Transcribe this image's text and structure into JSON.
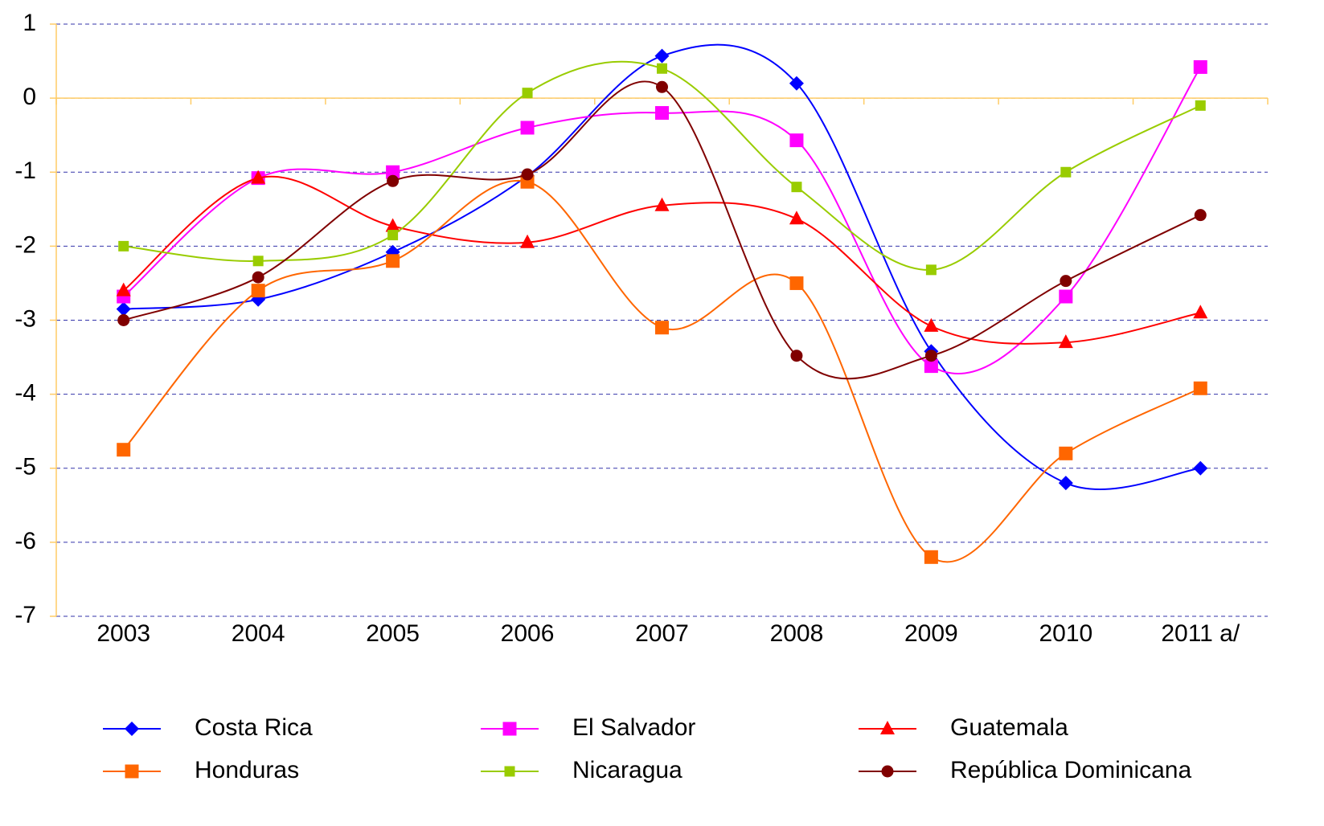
{
  "chart_data": {
    "type": "line",
    "categories": [
      "2003",
      "2004",
      "2005",
      "2006",
      "2007",
      "2008",
      "2009",
      "2010",
      "2011 a/"
    ],
    "series": [
      {
        "name": "Costa Rica",
        "color": "#0000ff",
        "marker": "diamond",
        "values": [
          -2.85,
          -2.72,
          -2.08,
          -1.05,
          0.57,
          0.2,
          -3.42,
          -5.2,
          -5.0
        ]
      },
      {
        "name": "El Salvador",
        "color": "#ff00ff",
        "marker": "square",
        "values": [
          -2.68,
          -1.08,
          -1.0,
          -0.4,
          -0.2,
          -0.57,
          -3.62,
          -2.68,
          0.42
        ]
      },
      {
        "name": "Guatemala",
        "color": "#ff0000",
        "marker": "triangle",
        "values": [
          -2.6,
          -1.08,
          -1.73,
          -1.95,
          -1.45,
          -1.63,
          -3.08,
          -3.3,
          -2.9
        ]
      },
      {
        "name": "Honduras",
        "color": "#ff6600",
        "marker": "square",
        "values": [
          -4.75,
          -2.6,
          -2.2,
          -1.13,
          -3.1,
          -2.5,
          -6.2,
          -4.8,
          -3.92
        ]
      },
      {
        "name": "Nicaragua",
        "color": "#99cc00",
        "marker": "small-square",
        "values": [
          -2.0,
          -2.2,
          -1.85,
          0.07,
          0.4,
          -1.2,
          -2.32,
          -1.0,
          -0.1
        ]
      },
      {
        "name": "República Dominicana",
        "color": "#800000",
        "marker": "circle",
        "values": [
          -3.0,
          -2.42,
          -1.12,
          -1.03,
          0.15,
          -3.48,
          -3.48,
          -2.47,
          -1.58
        ]
      }
    ],
    "ylim": [
      -7,
      1
    ],
    "yticks": [
      -7,
      -6,
      -5,
      -4,
      -3,
      -2,
      -1,
      0,
      1
    ],
    "grid": true,
    "smooth": true,
    "legend": "bottom"
  }
}
